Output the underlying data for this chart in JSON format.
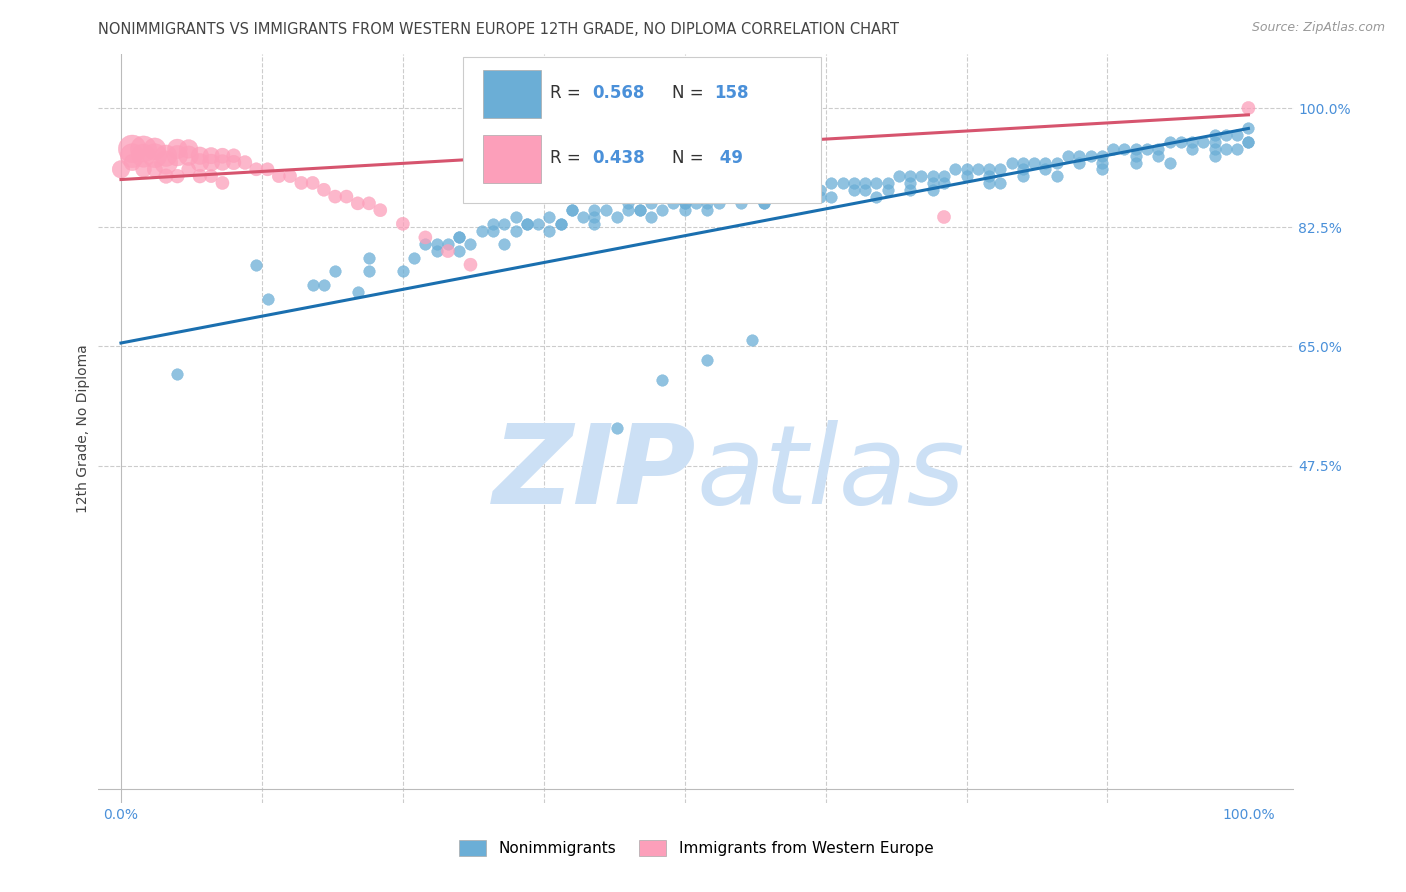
{
  "title": "NONIMMIGRANTS VS IMMIGRANTS FROM WESTERN EUROPE 12TH GRADE, NO DIPLOMA CORRELATION CHART",
  "source": "Source: ZipAtlas.com",
  "ylabel": "12th Grade, No Diploma",
  "xlim": [
    -0.02,
    1.04
  ],
  "ylim": [
    -0.02,
    1.08
  ],
  "legend_blue_r": "0.568",
  "legend_blue_n": "158",
  "legend_pink_r": "0.438",
  "legend_pink_n": "49",
  "blue_color": "#6baed6",
  "pink_color": "#fc9fba",
  "blue_line_color": "#1a6faf",
  "pink_line_color": "#d6546e",
  "grid_color": "#cccccc",
  "title_color": "#444444",
  "axis_label_color": "#4a90d9",
  "watermark_zip_color": "#cce0f5",
  "watermark_atlas_color": "#cce0f5",
  "blue_scatter_x": [
    0.05,
    0.12,
    0.17,
    0.19,
    0.21,
    0.22,
    0.25,
    0.27,
    0.28,
    0.29,
    0.3,
    0.31,
    0.32,
    0.33,
    0.34,
    0.35,
    0.36,
    0.37,
    0.38,
    0.39,
    0.4,
    0.41,
    0.42,
    0.43,
    0.44,
    0.45,
    0.46,
    0.47,
    0.48,
    0.49,
    0.5,
    0.51,
    0.52,
    0.53,
    0.54,
    0.55,
    0.56,
    0.57,
    0.58,
    0.59,
    0.6,
    0.61,
    0.62,
    0.63,
    0.64,
    0.65,
    0.66,
    0.67,
    0.68,
    0.69,
    0.7,
    0.71,
    0.72,
    0.73,
    0.74,
    0.75,
    0.76,
    0.77,
    0.78,
    0.79,
    0.8,
    0.81,
    0.82,
    0.83,
    0.84,
    0.85,
    0.86,
    0.87,
    0.88,
    0.89,
    0.9,
    0.91,
    0.92,
    0.93,
    0.94,
    0.95,
    0.96,
    0.97,
    0.98,
    0.99,
    1.0,
    1.0,
    0.99,
    0.98,
    0.97,
    0.35,
    0.4,
    0.45,
    0.5,
    0.55,
    0.6,
    0.65,
    0.68,
    0.7,
    0.72,
    0.75,
    0.77,
    0.8,
    0.82,
    0.85,
    0.87,
    0.9,
    0.92,
    0.95,
    0.97,
    0.28,
    0.3,
    0.33,
    0.36,
    0.39,
    0.42,
    0.46,
    0.5,
    0.53,
    0.57,
    0.6,
    0.63,
    0.66,
    0.7,
    0.73,
    0.77,
    0.8,
    0.83,
    0.87,
    0.9,
    0.93,
    0.97,
    1.0,
    0.13,
    0.18,
    0.22,
    0.26,
    0.3,
    0.34,
    0.38,
    0.42,
    0.47,
    0.52,
    0.57,
    0.62,
    0.67,
    0.72,
    0.78,
    0.44,
    0.48,
    0.52,
    0.56
  ],
  "blue_scatter_y": [
    0.61,
    0.77,
    0.74,
    0.76,
    0.73,
    0.78,
    0.76,
    0.8,
    0.79,
    0.8,
    0.81,
    0.8,
    0.82,
    0.83,
    0.83,
    0.82,
    0.83,
    0.83,
    0.84,
    0.83,
    0.85,
    0.84,
    0.85,
    0.85,
    0.84,
    0.85,
    0.85,
    0.86,
    0.85,
    0.86,
    0.86,
    0.86,
    0.86,
    0.87,
    0.87,
    0.87,
    0.87,
    0.87,
    0.88,
    0.88,
    0.88,
    0.88,
    0.88,
    0.89,
    0.89,
    0.89,
    0.89,
    0.89,
    0.89,
    0.9,
    0.9,
    0.9,
    0.9,
    0.9,
    0.91,
    0.91,
    0.91,
    0.91,
    0.91,
    0.92,
    0.92,
    0.92,
    0.92,
    0.92,
    0.93,
    0.93,
    0.93,
    0.93,
    0.94,
    0.94,
    0.94,
    0.94,
    0.94,
    0.95,
    0.95,
    0.95,
    0.95,
    0.96,
    0.96,
    0.96,
    0.97,
    0.95,
    0.94,
    0.94,
    0.93,
    0.84,
    0.85,
    0.86,
    0.86,
    0.86,
    0.87,
    0.88,
    0.88,
    0.89,
    0.89,
    0.9,
    0.9,
    0.91,
    0.91,
    0.92,
    0.92,
    0.93,
    0.93,
    0.94,
    0.95,
    0.8,
    0.81,
    0.82,
    0.83,
    0.83,
    0.84,
    0.85,
    0.85,
    0.86,
    0.86,
    0.87,
    0.87,
    0.88,
    0.88,
    0.89,
    0.89,
    0.9,
    0.9,
    0.91,
    0.92,
    0.92,
    0.94,
    0.95,
    0.72,
    0.74,
    0.76,
    0.78,
    0.79,
    0.8,
    0.82,
    0.83,
    0.84,
    0.85,
    0.86,
    0.87,
    0.87,
    0.88,
    0.89,
    0.53,
    0.6,
    0.63,
    0.66
  ],
  "pink_scatter_x": [
    0.01,
    0.01,
    0.02,
    0.02,
    0.03,
    0.03,
    0.04,
    0.04,
    0.05,
    0.05,
    0.06,
    0.06,
    0.07,
    0.07,
    0.08,
    0.08,
    0.09,
    0.09,
    0.1,
    0.1,
    0.11,
    0.12,
    0.13,
    0.14,
    0.15,
    0.16,
    0.17,
    0.18,
    0.19,
    0.2,
    0.21,
    0.22,
    0.23,
    0.25,
    0.27,
    0.29,
    0.31,
    0.0,
    0.01,
    0.02,
    0.03,
    0.04,
    0.05,
    0.06,
    0.07,
    0.08,
    0.09,
    0.73,
    1.0
  ],
  "pink_scatter_y": [
    0.94,
    0.93,
    0.94,
    0.93,
    0.93,
    0.94,
    0.92,
    0.93,
    0.93,
    0.94,
    0.93,
    0.94,
    0.92,
    0.93,
    0.92,
    0.93,
    0.92,
    0.93,
    0.92,
    0.93,
    0.92,
    0.91,
    0.91,
    0.9,
    0.9,
    0.89,
    0.89,
    0.88,
    0.87,
    0.87,
    0.86,
    0.86,
    0.85,
    0.83,
    0.81,
    0.79,
    0.77,
    0.91,
    0.92,
    0.91,
    0.91,
    0.9,
    0.9,
    0.91,
    0.9,
    0.9,
    0.89,
    0.84,
    1.0
  ],
  "pink_sizes": [
    400,
    300,
    350,
    280,
    300,
    250,
    280,
    240,
    220,
    200,
    200,
    180,
    170,
    160,
    150,
    140,
    130,
    120,
    110,
    100,
    100,
    90,
    90,
    90,
    90,
    90,
    90,
    90,
    90,
    90,
    90,
    90,
    90,
    90,
    90,
    90,
    90,
    160,
    140,
    130,
    120,
    110,
    100,
    100,
    100,
    90,
    90,
    90,
    90
  ],
  "blue_line_x": [
    0.0,
    1.0
  ],
  "blue_line_y": [
    0.655,
    0.97
  ],
  "pink_line_x": [
    0.0,
    1.0
  ],
  "pink_line_y": [
    0.895,
    0.99
  ],
  "blue_marker_size": 70
}
